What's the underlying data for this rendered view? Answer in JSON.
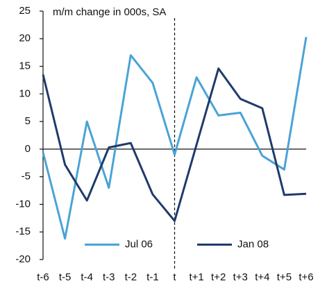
{
  "chart_data": {
    "type": "line",
    "annotation": "m/m change in 000s, SA",
    "categories": [
      "t-6",
      "t-5",
      "t-4",
      "t-3",
      "t-2",
      "t-1",
      "t",
      "t+1",
      "t+2",
      "t+3",
      "t+4",
      "t+5",
      "t+6"
    ],
    "series": [
      {
        "name": "Jul 06",
        "color": "#4aa3d6",
        "values": [
          -0.6,
          -16.2,
          5,
          -7,
          17,
          12,
          -1,
          13,
          6.1,
          6.6,
          -1.2,
          -3.7,
          20.3
        ]
      },
      {
        "name": "Jan 08",
        "color": "#1f3a6b",
        "values": [
          13.5,
          -2.8,
          -9.3,
          0.3,
          1.1,
          -8.2,
          -13,
          0.8,
          14.6,
          9.1,
          7.4,
          -8.3,
          -8.1
        ]
      }
    ],
    "ylim": [
      -20,
      25
    ],
    "yticks": [
      -20,
      -15,
      -10,
      -5,
      0,
      5,
      10,
      15,
      20,
      25
    ],
    "grid": false
  }
}
